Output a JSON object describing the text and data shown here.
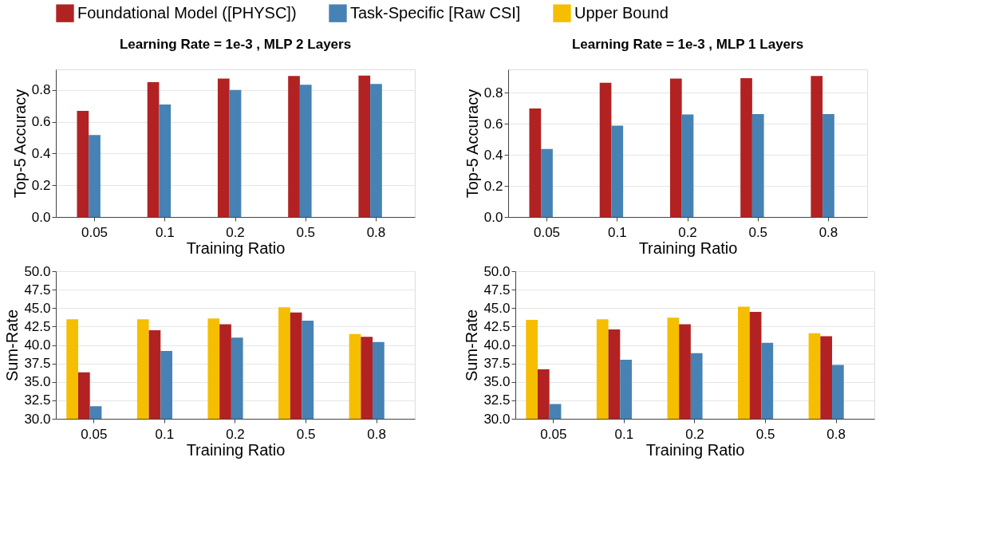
{
  "chart_data": [
    {
      "type": "bar",
      "title": "Learning Rate = 1e-3 , MLP 2 Layers",
      "xlabel": "Training Ratio",
      "ylabel": "Top-5 Accuracy",
      "categories": [
        "0.05",
        "0.1",
        "0.2",
        "0.5",
        "0.8"
      ],
      "ylim": [
        0,
        0.93
      ],
      "yticks": [
        {
          "value": 0,
          "label": "0.0"
        },
        0.2,
        0.4,
        0.6,
        0.8
      ],
      "grid": "y",
      "legend": "top",
      "series": [
        {
          "name": "Foundational Model ([PHYSC])",
          "color": "#b22222",
          "values": [
            0.669,
            0.85,
            0.872,
            0.888,
            0.891
          ]
        },
        {
          "name": "Task-Specific [Raw CSI]",
          "color": "#4682b4",
          "values": [
            0.516,
            0.709,
            0.8,
            0.833,
            0.838
          ]
        }
      ]
    },
    {
      "type": "bar",
      "title": "Learning Rate = 1e-3 , MLP 1 Layers",
      "xlabel": "Training Ratio",
      "ylabel": "Top-5 Accuracy",
      "categories": [
        "0.05",
        "0.1",
        "0.2",
        "0.5",
        "0.8"
      ],
      "ylim": [
        0,
        0.95
      ],
      "yticks": [
        {
          "value": 0,
          "label": "0.0"
        },
        0.2,
        0.4,
        0.6,
        0.8
      ],
      "grid": "y",
      "legend": "top",
      "series": [
        {
          "name": "Foundational Model ([PHYSC])",
          "color": "#b22222",
          "values": [
            0.698,
            0.864,
            0.891,
            0.894,
            0.907
          ]
        },
        {
          "name": "Task-Specific [Raw CSI]",
          "color": "#4682b4",
          "values": [
            0.438,
            0.588,
            0.66,
            0.663,
            0.663
          ]
        }
      ]
    },
    {
      "type": "bar",
      "xlabel": "Training Ratio",
      "ylabel": "Sum-Rate",
      "categories": [
        "0.05",
        "0.1",
        "0.2",
        "0.5",
        "0.8"
      ],
      "ylim": [
        30,
        50
      ],
      "yticks": [
        {
          "value": 30,
          "label": "30.0"
        },
        32.5,
        {
          "value": 35,
          "label": "35.0"
        },
        37.5,
        {
          "value": 40,
          "label": "40.0"
        },
        42.5,
        {
          "value": 45,
          "label": "45.0"
        },
        47.5,
        {
          "value": 50,
          "label": "50.0"
        }
      ],
      "grid": "y",
      "legend": "top",
      "series": [
        {
          "name": "Upper Bound",
          "color": "#f5be00",
          "values": [
            43.5,
            43.5,
            43.6,
            45.1,
            41.5
          ]
        },
        {
          "name": "Foundational Model ([PHYSC])",
          "color": "#b22222",
          "values": [
            36.3,
            42.0,
            42.8,
            44.4,
            41.1
          ]
        },
        {
          "name": "Task-Specific [Raw CSI]",
          "color": "#4682b4",
          "values": [
            31.7,
            39.2,
            41.0,
            43.3,
            40.4
          ]
        }
      ]
    },
    {
      "type": "bar",
      "xlabel": "Training Ratio",
      "ylabel": "Sum-Rate",
      "categories": [
        "0.05",
        "0.1",
        "0.2",
        "0.5",
        "0.8"
      ],
      "ylim": [
        30,
        50
      ],
      "yticks": [
        {
          "value": 30,
          "label": "30.0"
        },
        32.5,
        {
          "value": 35,
          "label": "35.0"
        },
        37.5,
        {
          "value": 40,
          "label": "40.0"
        },
        42.5,
        {
          "value": 45,
          "label": "45.0"
        },
        47.5,
        {
          "value": 50,
          "label": "50.0"
        }
      ],
      "grid": "y",
      "legend": "top",
      "series": [
        {
          "name": "Upper Bound",
          "color": "#f5be00",
          "values": [
            43.4,
            43.5,
            43.7,
            45.2,
            41.6
          ]
        },
        {
          "name": "Foundational Model ([PHYSC])",
          "color": "#b22222",
          "values": [
            36.7,
            42.1,
            42.8,
            44.5,
            41.2
          ]
        },
        {
          "name": "Task-Specific [Raw CSI]",
          "color": "#4682b4",
          "values": [
            32.0,
            38.0,
            38.9,
            40.3,
            37.3
          ]
        }
      ]
    }
  ]
}
